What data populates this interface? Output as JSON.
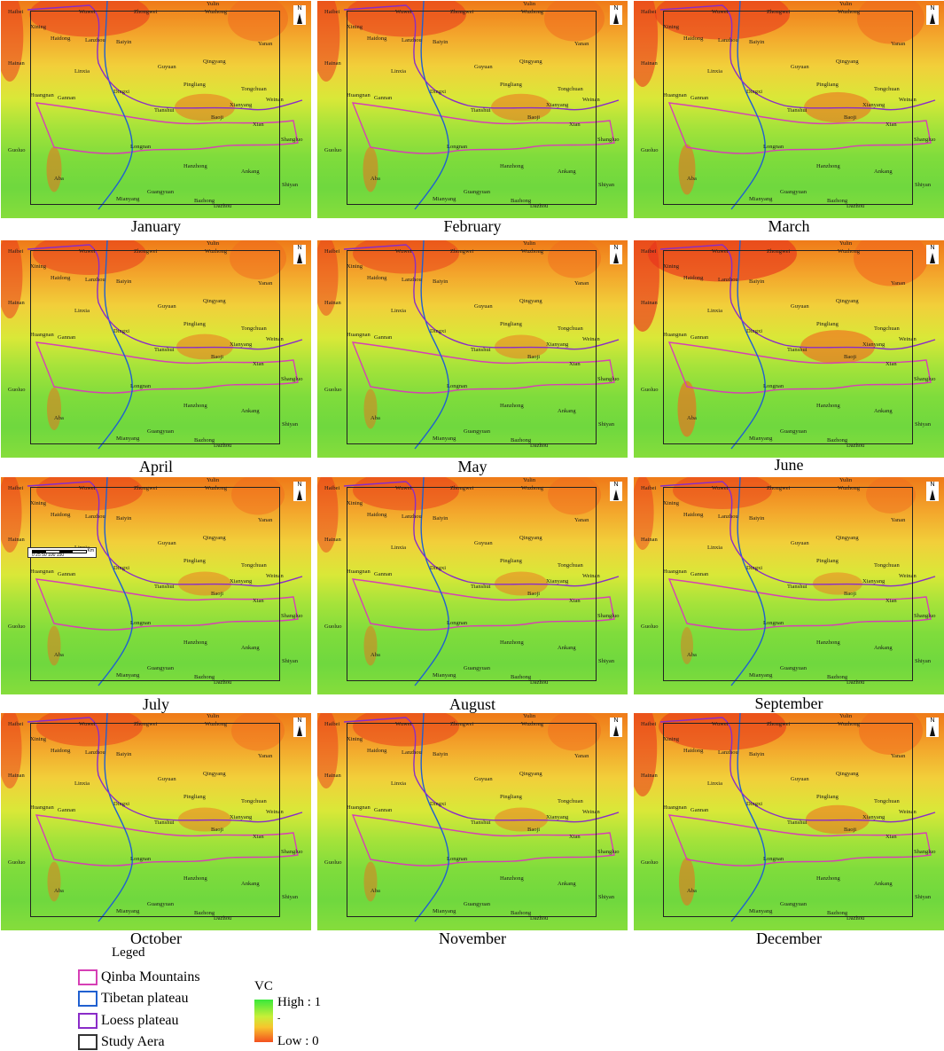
{
  "panels": [
    {
      "month": "January",
      "low_fraction": 0.35
    },
    {
      "month": "February",
      "low_fraction": 0.35
    },
    {
      "month": "March",
      "low_fraction": 0.45
    },
    {
      "month": "April",
      "low_fraction": 0.3
    },
    {
      "month": "May",
      "low_fraction": 0.25
    },
    {
      "month": "June",
      "low_fraction": 0.55
    },
    {
      "month": "July",
      "low_fraction": 0.25
    },
    {
      "month": "August",
      "low_fraction": 0.25
    },
    {
      "month": "September",
      "low_fraction": 0.2
    },
    {
      "month": "October",
      "low_fraction": 0.25
    },
    {
      "month": "November",
      "low_fraction": 0.25
    },
    {
      "month": "December",
      "low_fraction": 0.4
    }
  ],
  "place_names": [
    "Wuwei",
    "Zhongwei",
    "Wuzhong",
    "Yulin",
    "Xining",
    "Haidong",
    "Lanzhou",
    "Baiyin",
    "Yanan",
    "Haibei",
    "Hainan",
    "Linxia",
    "Guyuan",
    "Qingyang",
    "Huangnan",
    "Gannan",
    "Dingxi",
    "Pingliang",
    "Tongchuan",
    "Weinan",
    "Xianyang",
    "Tianshui",
    "Baoji",
    "Xian",
    "Shangluo",
    "Longnan",
    "Hanzhong",
    "Ankang",
    "Shiyan",
    "Guoluo",
    "Aba",
    "Mianyang",
    "Guangyuan",
    "Bazhong",
    "Dazhou"
  ],
  "north_label": "N",
  "scale": {
    "unit": "Km",
    "ticks": "0  25 50    100    150",
    "place": "Linxia"
  },
  "legend": {
    "title": "Leged",
    "items": [
      {
        "label": "Qinba Mountains",
        "color": "#d63fb5"
      },
      {
        "label": "Tibetan plateau",
        "color": "#2060d0"
      },
      {
        "label": "Loess plateau",
        "color": "#8a2cc8"
      },
      {
        "label": "Study Aera",
        "color": "#333333"
      }
    ]
  },
  "colorbar": {
    "title": "VC",
    "high": "High : 1",
    "mid": "-",
    "low": "Low : 0"
  },
  "colors": {
    "high": "#38e83a",
    "mid": "#f7c52d",
    "low": "#f3501f",
    "qinba": "#d63fb5",
    "tibet": "#2060d0",
    "loess": "#8a2cc8"
  }
}
